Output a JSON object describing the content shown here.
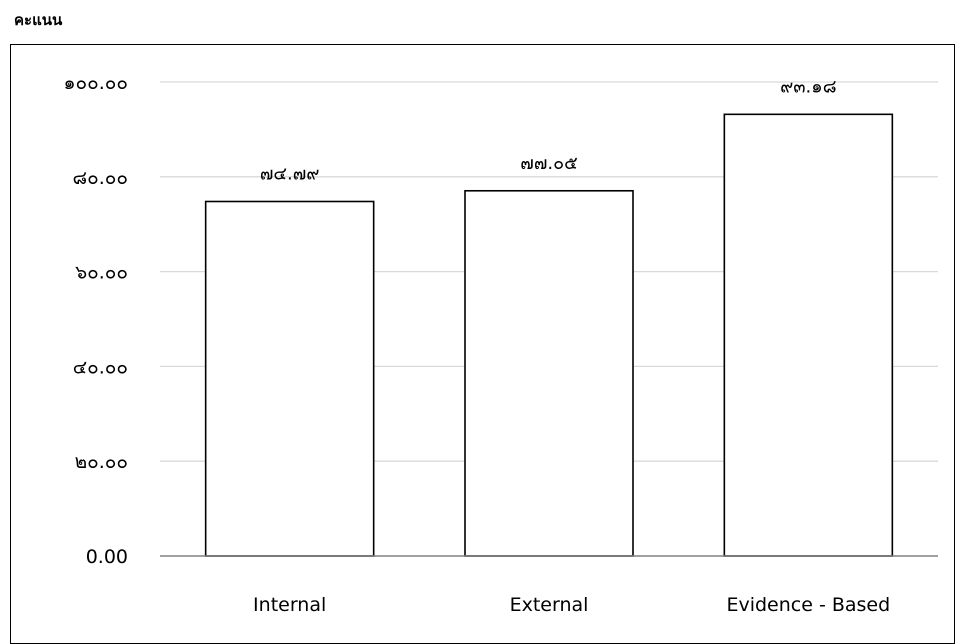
{
  "chart_data": {
    "type": "bar",
    "ylabel": "คะแนน",
    "xlabel": "",
    "title": "",
    "categories": [
      "Internal",
      "External",
      "Evidence - Based"
    ],
    "values": [
      74.79,
      77.05,
      93.18
    ],
    "data_labels": [
      "๗๔.๗๙",
      "๗๗.๐๕",
      "๙๓.๑๘"
    ],
    "ylim": [
      0,
      100
    ],
    "yticks": [
      0,
      20,
      40,
      60,
      80,
      100
    ],
    "ytick_labels": [
      "0.00",
      "๒๐.๐๐",
      "๔๐.๐๐",
      "๖๐.๐๐",
      "๘๐.๐๐",
      "๑๐๐.๐๐"
    ],
    "grid": true,
    "legend": "none",
    "colors": {
      "bar_fill": "#ffffff",
      "bar_stroke": "#000000",
      "grid": "#d9d9d9",
      "axis": "#808080"
    }
  }
}
